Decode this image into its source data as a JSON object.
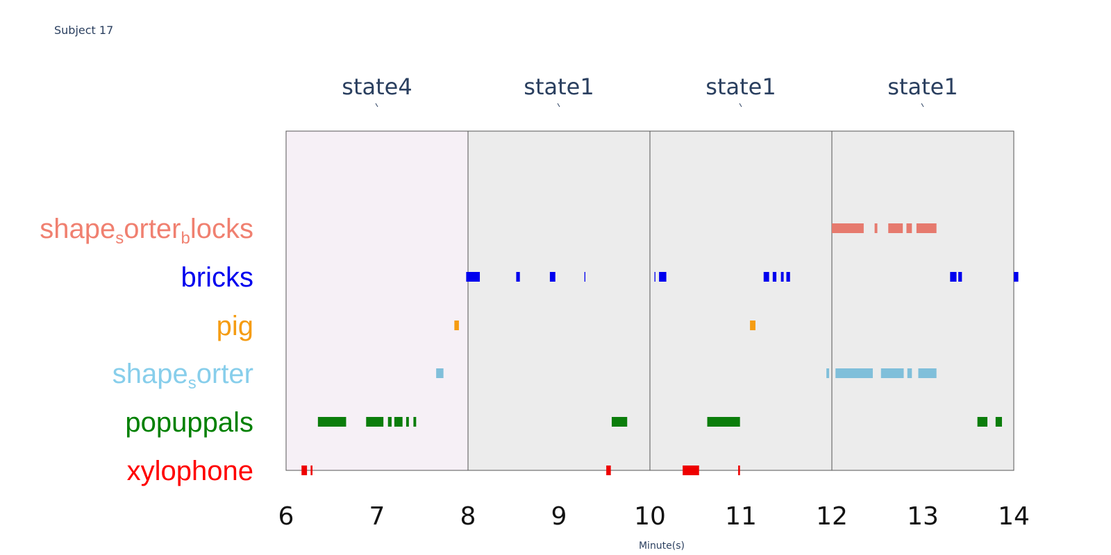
{
  "subject_title": "Subject 17",
  "chart_data": {
    "type": "timeline",
    "xlabel": "Minute(s)",
    "xlim": [
      6,
      14
    ],
    "x_ticks": [
      "6",
      "7",
      "8",
      "9",
      "10",
      "11",
      "12",
      "13",
      "14"
    ],
    "states": [
      {
        "label": "state4",
        "start": 6,
        "end": 8,
        "color": "#f6f0f6"
      },
      {
        "label": "state1",
        "start": 8,
        "end": 10,
        "color": "#ececec"
      },
      {
        "label": "state1",
        "start": 10,
        "end": 12,
        "color": "#ececec"
      },
      {
        "label": "state1",
        "start": 12,
        "end": 14,
        "color": "#ececec"
      }
    ],
    "series": [
      {
        "name": "shape_sorter_blocks",
        "color": "#f08070",
        "bar_color": "#e67a6e",
        "label_parts": [
          {
            "text": "shape"
          },
          {
            "text": "s",
            "sub": true
          },
          {
            "text": "orter"
          },
          {
            "text": "b",
            "sub": true
          },
          {
            "text": "locks"
          }
        ],
        "segments": [
          [
            12.0,
            12.35
          ],
          [
            12.47,
            12.5
          ],
          [
            12.62,
            12.78
          ],
          [
            12.82,
            12.88
          ],
          [
            12.93,
            13.15
          ]
        ]
      },
      {
        "name": "bricks",
        "color": "#0000ee",
        "bar_color": "#0000ee",
        "label_parts": [
          {
            "text": "bricks"
          }
        ],
        "segments": [
          [
            7.98,
            8.13
          ],
          [
            8.53,
            8.57
          ],
          [
            8.9,
            8.96
          ],
          [
            9.28,
            9.29
          ],
          [
            10.05,
            10.06
          ],
          [
            10.1,
            10.18
          ],
          [
            11.25,
            11.31
          ],
          [
            11.35,
            11.39
          ],
          [
            11.44,
            11.47
          ],
          [
            11.5,
            11.54
          ],
          [
            13.3,
            13.37
          ],
          [
            13.39,
            13.43
          ],
          [
            14.0,
            14.05
          ]
        ]
      },
      {
        "name": "pig",
        "color": "#f59c12",
        "bar_color": "#f59c12",
        "label_parts": [
          {
            "text": "pig"
          }
        ],
        "segments": [
          [
            7.85,
            7.9
          ],
          [
            11.1,
            11.16
          ]
        ]
      },
      {
        "name": "shape_sorter",
        "color": "#87ceeb",
        "bar_color": "#80bfda",
        "label_parts": [
          {
            "text": "shape"
          },
          {
            "text": "s",
            "sub": true
          },
          {
            "text": "orter"
          }
        ],
        "segments": [
          [
            7.65,
            7.73
          ],
          [
            11.94,
            11.97
          ],
          [
            12.04,
            12.45
          ],
          [
            12.54,
            12.79
          ],
          [
            12.83,
            12.88
          ],
          [
            12.95,
            13.15
          ]
        ]
      },
      {
        "name": "popuppals",
        "color": "#008000",
        "bar_color": "#0b7d0b",
        "label_parts": [
          {
            "text": "popuppals"
          }
        ],
        "segments": [
          [
            6.35,
            6.66
          ],
          [
            6.88,
            7.07
          ],
          [
            7.12,
            7.16
          ],
          [
            7.19,
            7.28
          ],
          [
            7.32,
            7.35
          ],
          [
            7.4,
            7.43
          ],
          [
            9.58,
            9.75
          ],
          [
            10.63,
            10.99
          ],
          [
            13.6,
            13.71
          ],
          [
            13.8,
            13.87
          ]
        ]
      },
      {
        "name": "xylophone",
        "color": "#ff0000",
        "bar_color": "#ee0000",
        "label_parts": [
          {
            "text": "xylophone"
          }
        ],
        "segments": [
          [
            6.17,
            6.23
          ],
          [
            6.27,
            6.29
          ],
          [
            9.52,
            9.57
          ],
          [
            10.36,
            10.54
          ],
          [
            10.97,
            10.99
          ]
        ]
      }
    ]
  }
}
